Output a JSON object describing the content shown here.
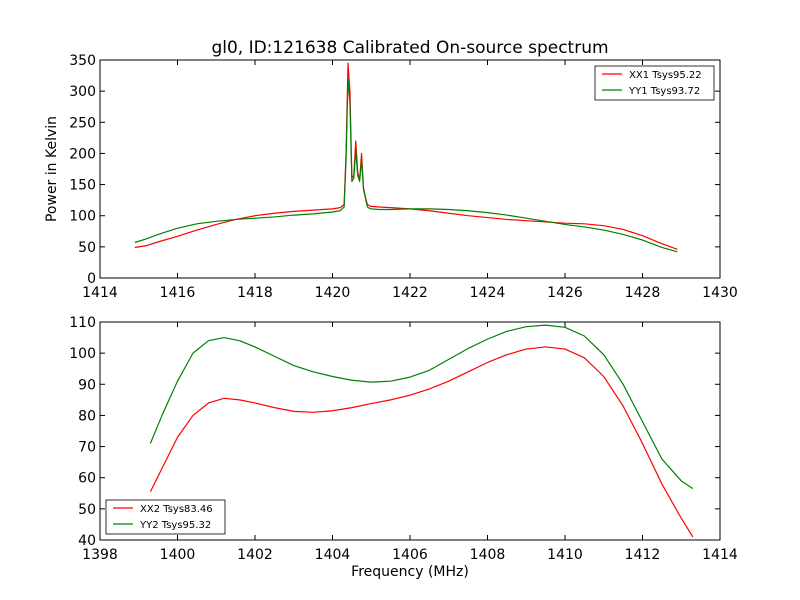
{
  "chart_data": [
    {
      "type": "line",
      "title": "gl0, ID:121638 Calibrated On-source spectrum",
      "xlabel": "",
      "ylabel": "Power in Kelvin",
      "xlim": [
        1414,
        1430
      ],
      "ylim": [
        0,
        350
      ],
      "xticks": [
        "1414",
        "1416",
        "1418",
        "1420",
        "1422",
        "1424",
        "1426",
        "1428",
        "1430"
      ],
      "yticks": [
        "0",
        "50",
        "100",
        "150",
        "200",
        "250",
        "300",
        "350"
      ],
      "grid": false,
      "legend_position": "top-right",
      "series": [
        {
          "name": "XX1 Tsys95.22",
          "color": "#ff0000",
          "x": [
            1414.9,
            1415.2,
            1415.5,
            1416.0,
            1416.5,
            1417.0,
            1417.5,
            1418.0,
            1418.5,
            1419.0,
            1419.5,
            1420.0,
            1420.2,
            1420.3,
            1420.35,
            1420.4,
            1420.45,
            1420.5,
            1420.55,
            1420.6,
            1420.65,
            1420.7,
            1420.75,
            1420.8,
            1420.85,
            1420.9,
            1420.95,
            1421.0,
            1421.2,
            1421.5,
            1422.0,
            1422.5,
            1423.0,
            1423.5,
            1424.0,
            1424.5,
            1425.0,
            1425.5,
            1426.0,
            1426.5,
            1427.0,
            1427.5,
            1428.0,
            1428.5,
            1428.9
          ],
          "y": [
            49,
            52,
            58,
            67,
            77,
            86,
            94,
            100,
            104,
            107,
            109,
            111,
            113,
            118,
            200,
            345,
            300,
            160,
            165,
            220,
            170,
            158,
            200,
            145,
            130,
            118,
            116,
            115,
            114,
            113,
            111,
            108,
            104,
            100,
            97,
            94,
            92,
            90,
            88,
            87,
            84,
            78,
            68,
            55,
            46
          ]
        },
        {
          "name": "YY1 Tsys93.72",
          "color": "#008000",
          "x": [
            1414.9,
            1415.2,
            1415.5,
            1416.0,
            1416.5,
            1417.0,
            1417.5,
            1418.0,
            1418.5,
            1419.0,
            1419.5,
            1420.0,
            1420.2,
            1420.3,
            1420.35,
            1420.4,
            1420.45,
            1420.5,
            1420.55,
            1420.6,
            1420.65,
            1420.7,
            1420.75,
            1420.8,
            1420.85,
            1420.9,
            1420.95,
            1421.0,
            1421.2,
            1421.5,
            1422.0,
            1422.5,
            1423.0,
            1423.5,
            1424.0,
            1424.5,
            1425.0,
            1425.5,
            1426.0,
            1426.5,
            1427.0,
            1427.5,
            1428.0,
            1428.5,
            1428.9
          ],
          "y": [
            57,
            63,
            70,
            80,
            87,
            91,
            94,
            96,
            98,
            101,
            103,
            106,
            108,
            114,
            190,
            320,
            280,
            155,
            160,
            205,
            165,
            155,
            190,
            142,
            128,
            114,
            112,
            111,
            110,
            110,
            111,
            111,
            110,
            108,
            105,
            101,
            96,
            91,
            86,
            82,
            77,
            70,
            61,
            49,
            42
          ]
        }
      ]
    },
    {
      "type": "line",
      "title": "",
      "xlabel": "Frequency (MHz)",
      "ylabel": "",
      "xlim": [
        1398,
        1414
      ],
      "ylim": [
        40,
        110
      ],
      "xticks": [
        "1398",
        "1400",
        "1402",
        "1404",
        "1406",
        "1408",
        "1410",
        "1412",
        "1414"
      ],
      "yticks": [
        "40",
        "50",
        "60",
        "70",
        "80",
        "90",
        "100",
        "110"
      ],
      "grid": false,
      "legend_position": "bottom-left",
      "series": [
        {
          "name": "XX2 Tsys83.46",
          "color": "#ff0000",
          "x": [
            1399.3,
            1399.6,
            1400.0,
            1400.4,
            1400.8,
            1401.2,
            1401.6,
            1402.0,
            1402.5,
            1403.0,
            1403.5,
            1404.0,
            1404.5,
            1405.0,
            1405.5,
            1406.0,
            1406.5,
            1407.0,
            1407.5,
            1408.0,
            1408.5,
            1409.0,
            1409.5,
            1410.0,
            1410.5,
            1411.0,
            1411.5,
            1412.0,
            1412.5,
            1413.0,
            1413.3
          ],
          "y": [
            55.5,
            63,
            73,
            80,
            84,
            85.5,
            85,
            84,
            82.5,
            81.3,
            81,
            81.5,
            82.5,
            83.8,
            85,
            86.5,
            88.5,
            91,
            94,
            97,
            99.5,
            101.3,
            102,
            101.3,
            98.5,
            92.5,
            83,
            71,
            58,
            47,
            41
          ]
        },
        {
          "name": "YY2 Tsys95.32",
          "color": "#008000",
          "x": [
            1399.3,
            1399.6,
            1400.0,
            1400.4,
            1400.8,
            1401.2,
            1401.6,
            1402.0,
            1402.5,
            1403.0,
            1403.5,
            1404.0,
            1404.5,
            1405.0,
            1405.5,
            1406.0,
            1406.5,
            1407.0,
            1407.5,
            1408.0,
            1408.5,
            1409.0,
            1409.5,
            1410.0,
            1410.5,
            1411.0,
            1411.5,
            1412.0,
            1412.5,
            1413.0,
            1413.3
          ],
          "y": [
            71,
            80,
            91,
            100,
            104,
            105,
            104,
            102,
            99,
            96,
            94,
            92.5,
            91.3,
            90.7,
            91,
            92.3,
            94.5,
            98,
            101.5,
            104.5,
            107,
            108.5,
            109,
            108.3,
            105.5,
            99.5,
            90,
            78,
            66,
            59,
            56.5
          ]
        }
      ]
    }
  ]
}
